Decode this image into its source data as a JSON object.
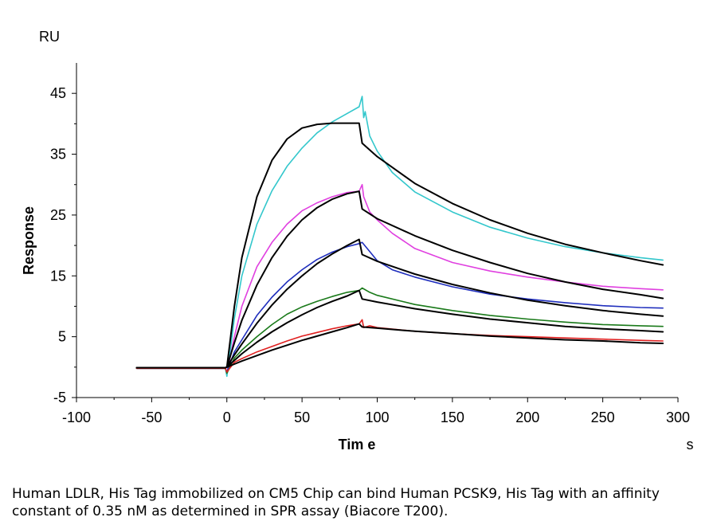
{
  "chart_data": {
    "type": "line",
    "xlabel": "Tim e",
    "ylabel": "Response",
    "x_unit": "s",
    "y_unit": "RU",
    "xlim": [
      -100,
      300
    ],
    "ylim": [
      -5,
      50
    ],
    "x_ticks": [
      -100,
      -50,
      0,
      50,
      100,
      150,
      200,
      250,
      300
    ],
    "y_ticks": [
      -5,
      5,
      15,
      25,
      35,
      45
    ],
    "grid": false,
    "series": [
      {
        "color": "#33c7cc",
        "points": [
          [
            -60,
            -0.2
          ],
          [
            -1,
            -0.2
          ],
          [
            0,
            -1.5
          ],
          [
            5,
            8
          ],
          [
            10,
            15
          ],
          [
            20,
            23.5
          ],
          [
            30,
            29
          ],
          [
            40,
            33
          ],
          [
            50,
            36
          ],
          [
            60,
            38.5
          ],
          [
            70,
            40.3
          ],
          [
            80,
            41.7
          ],
          [
            88,
            42.8
          ],
          [
            90,
            44.5
          ],
          [
            91,
            41
          ],
          [
            92,
            42
          ],
          [
            95,
            38
          ],
          [
            100,
            35.5
          ],
          [
            110,
            32
          ],
          [
            125,
            28.8
          ],
          [
            150,
            25.5
          ],
          [
            175,
            23
          ],
          [
            200,
            21.2
          ],
          [
            225,
            19.8
          ],
          [
            250,
            18.8
          ],
          [
            275,
            18
          ],
          [
            290,
            17.6
          ]
        ]
      },
      {
        "color": "#000000",
        "points": [
          [
            -60,
            -0.1
          ],
          [
            -1,
            -0.1
          ],
          [
            0,
            0
          ],
          [
            5,
            10
          ],
          [
            10,
            18
          ],
          [
            20,
            28
          ],
          [
            30,
            34
          ],
          [
            40,
            37.5
          ],
          [
            50,
            39.3
          ],
          [
            60,
            39.9
          ],
          [
            70,
            40.1
          ],
          [
            88,
            40.1
          ],
          [
            90,
            36.8
          ],
          [
            100,
            34.6
          ],
          [
            125,
            30.2
          ],
          [
            150,
            26.9
          ],
          [
            175,
            24.2
          ],
          [
            200,
            22
          ],
          [
            225,
            20.2
          ],
          [
            250,
            18.8
          ],
          [
            275,
            17.5
          ],
          [
            290,
            16.8
          ]
        ]
      },
      {
        "color": "#e040e0",
        "points": [
          [
            -60,
            -0.2
          ],
          [
            -1,
            -0.2
          ],
          [
            0,
            -1
          ],
          [
            5,
            5
          ],
          [
            10,
            10
          ],
          [
            20,
            16.5
          ],
          [
            30,
            20.5
          ],
          [
            40,
            23.5
          ],
          [
            50,
            25.7
          ],
          [
            60,
            27
          ],
          [
            70,
            28
          ],
          [
            80,
            28.7
          ],
          [
            88,
            28.9
          ],
          [
            90,
            30
          ],
          [
            91,
            28
          ],
          [
            95,
            25.5
          ],
          [
            100,
            24.2
          ],
          [
            110,
            22
          ],
          [
            125,
            19.5
          ],
          [
            150,
            17.2
          ],
          [
            175,
            15.8
          ],
          [
            200,
            14.8
          ],
          [
            225,
            14
          ],
          [
            250,
            13.3
          ],
          [
            275,
            12.9
          ],
          [
            290,
            12.7
          ]
        ]
      },
      {
        "color": "#000000",
        "points": [
          [
            -60,
            -0.1
          ],
          [
            -1,
            -0.1
          ],
          [
            0,
            0
          ],
          [
            5,
            4
          ],
          [
            10,
            7.7
          ],
          [
            20,
            13.5
          ],
          [
            30,
            18
          ],
          [
            40,
            21.5
          ],
          [
            50,
            24.2
          ],
          [
            60,
            26.2
          ],
          [
            70,
            27.6
          ],
          [
            80,
            28.5
          ],
          [
            88,
            28.9
          ],
          [
            90,
            26
          ],
          [
            100,
            24.4
          ],
          [
            125,
            21.6
          ],
          [
            150,
            19.2
          ],
          [
            175,
            17.2
          ],
          [
            200,
            15.4
          ],
          [
            225,
            14
          ],
          [
            250,
            12.8
          ],
          [
            275,
            11.9
          ],
          [
            290,
            11.3
          ]
        ]
      },
      {
        "color": "#1f2ebd",
        "points": [
          [
            -60,
            -0.2
          ],
          [
            -1,
            -0.2
          ],
          [
            0,
            -0.8
          ],
          [
            5,
            2.5
          ],
          [
            10,
            4.5
          ],
          [
            20,
            8.5
          ],
          [
            30,
            11.5
          ],
          [
            40,
            14
          ],
          [
            50,
            16
          ],
          [
            60,
            17.7
          ],
          [
            70,
            18.9
          ],
          [
            80,
            19.8
          ],
          [
            88,
            20.3
          ],
          [
            90,
            20.5
          ],
          [
            95,
            19
          ],
          [
            100,
            17.5
          ],
          [
            110,
            16
          ],
          [
            125,
            14.8
          ],
          [
            150,
            13.2
          ],
          [
            175,
            12
          ],
          [
            200,
            11.2
          ],
          [
            225,
            10.6
          ],
          [
            250,
            10.1
          ],
          [
            275,
            9.8
          ],
          [
            290,
            9.7
          ]
        ]
      },
      {
        "color": "#000000",
        "points": [
          [
            -60,
            -0.1
          ],
          [
            -1,
            -0.1
          ],
          [
            0,
            0
          ],
          [
            5,
            2
          ],
          [
            10,
            3.8
          ],
          [
            20,
            7.2
          ],
          [
            30,
            10.2
          ],
          [
            40,
            12.8
          ],
          [
            50,
            15
          ],
          [
            60,
            17
          ],
          [
            70,
            18.6
          ],
          [
            80,
            20
          ],
          [
            88,
            21
          ],
          [
            90,
            18.5
          ],
          [
            100,
            17.4
          ],
          [
            125,
            15.3
          ],
          [
            150,
            13.6
          ],
          [
            175,
            12.2
          ],
          [
            200,
            11
          ],
          [
            225,
            10.1
          ],
          [
            250,
            9.3
          ],
          [
            275,
            8.7
          ],
          [
            290,
            8.4
          ]
        ]
      },
      {
        "color": "#1a7a1a",
        "points": [
          [
            -60,
            -0.2
          ],
          [
            -1,
            -0.2
          ],
          [
            0,
            -1
          ],
          [
            5,
            1.5
          ],
          [
            10,
            2.8
          ],
          [
            20,
            5
          ],
          [
            30,
            7
          ],
          [
            40,
            8.7
          ],
          [
            50,
            9.9
          ],
          [
            60,
            10.8
          ],
          [
            70,
            11.6
          ],
          [
            80,
            12.3
          ],
          [
            88,
            12.6
          ],
          [
            90,
            13
          ],
          [
            95,
            12.3
          ],
          [
            100,
            11.8
          ],
          [
            125,
            10.3
          ],
          [
            150,
            9.3
          ],
          [
            175,
            8.5
          ],
          [
            200,
            7.9
          ],
          [
            225,
            7.4
          ],
          [
            250,
            7
          ],
          [
            275,
            6.8
          ],
          [
            290,
            6.7
          ]
        ]
      },
      {
        "color": "#000000",
        "points": [
          [
            -60,
            -0.1
          ],
          [
            -1,
            -0.1
          ],
          [
            0,
            0
          ],
          [
            5,
            1.1
          ],
          [
            10,
            2.2
          ],
          [
            20,
            4.1
          ],
          [
            30,
            5.8
          ],
          [
            40,
            7.3
          ],
          [
            50,
            8.6
          ],
          [
            60,
            9.8
          ],
          [
            70,
            10.8
          ],
          [
            80,
            11.7
          ],
          [
            88,
            12.6
          ],
          [
            90,
            11.2
          ],
          [
            100,
            10.7
          ],
          [
            125,
            9.6
          ],
          [
            150,
            8.7
          ],
          [
            175,
            7.9
          ],
          [
            200,
            7.3
          ],
          [
            225,
            6.7
          ],
          [
            250,
            6.3
          ],
          [
            275,
            6
          ],
          [
            290,
            5.8
          ]
        ]
      },
      {
        "color": "#e02020",
        "points": [
          [
            -60,
            -0.2
          ],
          [
            -1,
            -0.2
          ],
          [
            0,
            -0.8
          ],
          [
            5,
            0.8
          ],
          [
            10,
            1.4
          ],
          [
            20,
            2.5
          ],
          [
            30,
            3.4
          ],
          [
            40,
            4.3
          ],
          [
            50,
            5.1
          ],
          [
            60,
            5.7
          ],
          [
            70,
            6.3
          ],
          [
            80,
            6.8
          ],
          [
            88,
            7.1
          ],
          [
            90,
            7.8
          ],
          [
            91,
            6.5
          ],
          [
            95,
            6.8
          ],
          [
            100,
            6.5
          ],
          [
            125,
            5.9
          ],
          [
            150,
            5.5
          ],
          [
            175,
            5.2
          ],
          [
            200,
            5
          ],
          [
            225,
            4.8
          ],
          [
            250,
            4.6
          ],
          [
            275,
            4.4
          ],
          [
            290,
            4.3
          ]
        ]
      },
      {
        "color": "#000000",
        "points": [
          [
            -60,
            -0.1
          ],
          [
            -1,
            -0.1
          ],
          [
            0,
            0
          ],
          [
            5,
            0.5
          ],
          [
            10,
            1
          ],
          [
            20,
            1.9
          ],
          [
            30,
            2.8
          ],
          [
            40,
            3.6
          ],
          [
            50,
            4.4
          ],
          [
            60,
            5.1
          ],
          [
            70,
            5.8
          ],
          [
            80,
            6.5
          ],
          [
            88,
            7.1
          ],
          [
            90,
            6.6
          ],
          [
            100,
            6.4
          ],
          [
            125,
            5.9
          ],
          [
            150,
            5.5
          ],
          [
            175,
            5.1
          ],
          [
            200,
            4.8
          ],
          [
            225,
            4.5
          ],
          [
            250,
            4.3
          ],
          [
            275,
            4
          ],
          [
            290,
            3.9
          ]
        ]
      }
    ]
  },
  "caption": "Human LDLR, His Tag immobilized on CM5 Chip can bind Human PCSK9, His Tag with an affinity constant of 0.35 nM as determined in SPR assay (Biacore T200)."
}
